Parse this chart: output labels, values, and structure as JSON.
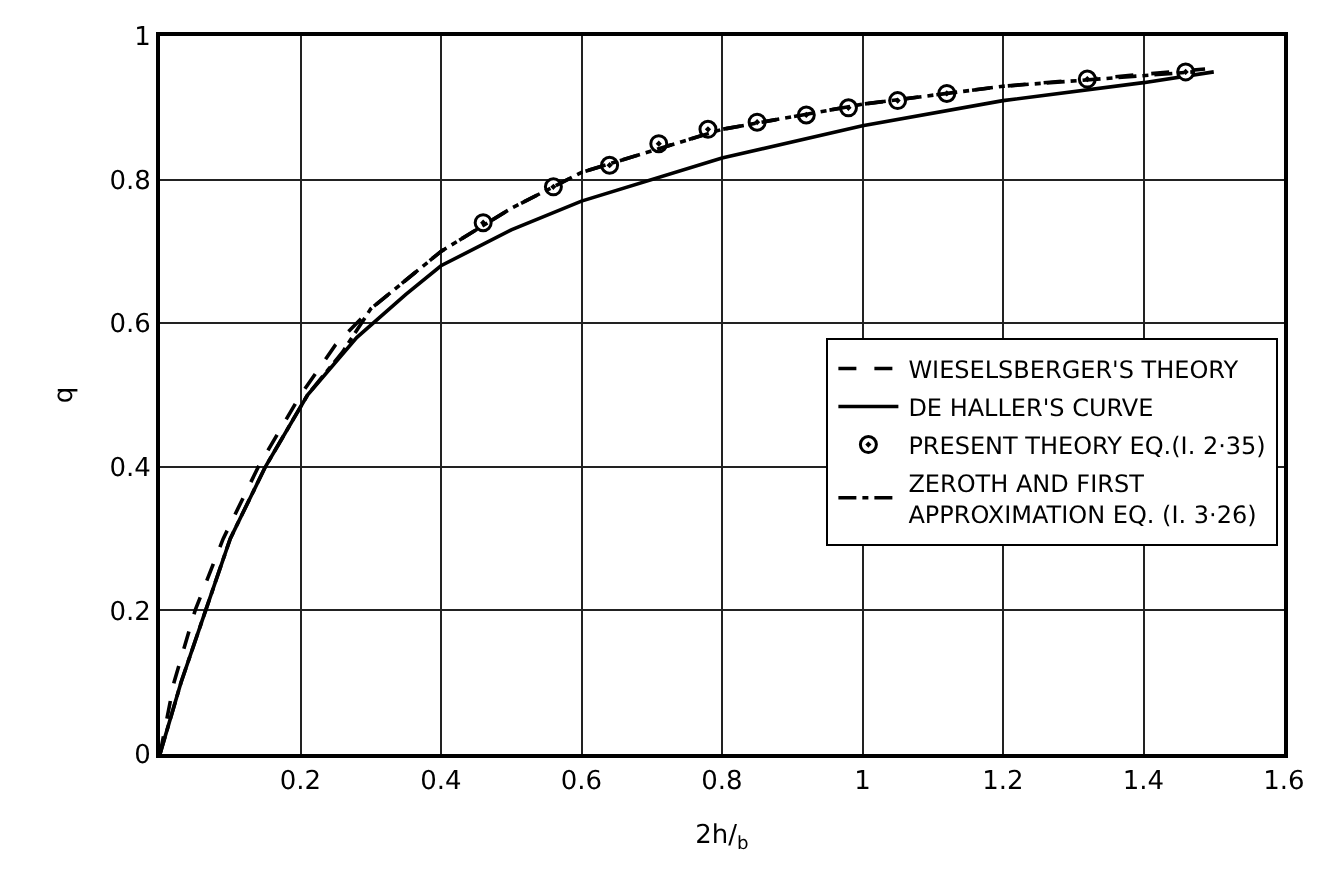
{
  "chart_data": {
    "type": "line",
    "xlabel": "2h/$_{b}$",
    "ylabel": "q",
    "xlim": [
      0,
      1.6
    ],
    "ylim": [
      0,
      1.0
    ],
    "xticks": [
      {
        "value": 0,
        "label": null
      },
      0.2,
      0.4,
      0.6,
      0.8,
      1.0,
      1.2,
      1.4,
      1.6
    ],
    "yticks": [
      0,
      0.2,
      0.4,
      0.6,
      0.8,
      1.0
    ],
    "grid": true,
    "legend": "right",
    "series": [
      {
        "name": "WIESELSBERGER'S THEORY",
        "color": "#000000",
        "line_style": "dashed",
        "marker": "none",
        "x": [
          0,
          0.02,
          0.05,
          0.09,
          0.14,
          0.2,
          0.25,
          0.3,
          0.4,
          0.5,
          0.6,
          0.8,
          1.0,
          1.2,
          1.5
        ],
        "values": [
          0,
          0.1,
          0.2,
          0.3,
          0.4,
          0.5,
          0.57,
          0.62,
          0.7,
          0.76,
          0.81,
          0.87,
          0.905,
          0.93,
          0.955
        ]
      },
      {
        "name": "DE HALLER'S CURVE",
        "color": "#000000",
        "line_style": "solid",
        "marker": "none",
        "x": [
          0,
          0.03,
          0.065,
          0.1,
          0.15,
          0.21,
          0.28,
          0.35,
          0.4,
          0.5,
          0.6,
          0.8,
          1.0,
          1.2,
          1.4,
          1.5
        ],
        "values": [
          0,
          0.1,
          0.2,
          0.3,
          0.4,
          0.5,
          0.58,
          0.64,
          0.68,
          0.73,
          0.77,
          0.83,
          0.875,
          0.91,
          0.935,
          0.95
        ]
      },
      {
        "name": "PRESENT THEORY EQ.(I. 2·35)",
        "color": "#000000",
        "type": "scatter",
        "marker": "circle",
        "x": [
          0.46,
          0.56,
          0.64,
          0.71,
          0.78,
          0.85,
          0.92,
          0.98,
          1.05,
          1.12,
          1.32,
          1.46
        ],
        "values": [
          0.74,
          0.79,
          0.82,
          0.85,
          0.87,
          0.88,
          0.89,
          0.9,
          0.91,
          0.92,
          0.94,
          0.95
        ]
      },
      {
        "name": "ZEROTH AND FIRST\nAPPROXIMATION EQ. (I. 3·26)",
        "color": "#000000",
        "line_style": "dashdot",
        "marker": "none",
        "x": [
          0,
          0.03,
          0.065,
          0.1,
          0.15,
          0.21,
          0.26,
          0.3,
          0.4,
          0.5,
          0.6,
          0.8,
          1.0,
          1.2,
          1.47
        ],
        "values": [
          0,
          0.1,
          0.2,
          0.3,
          0.4,
          0.5,
          0.56,
          0.62,
          0.7,
          0.76,
          0.81,
          0.87,
          0.905,
          0.93,
          0.95
        ]
      }
    ]
  }
}
